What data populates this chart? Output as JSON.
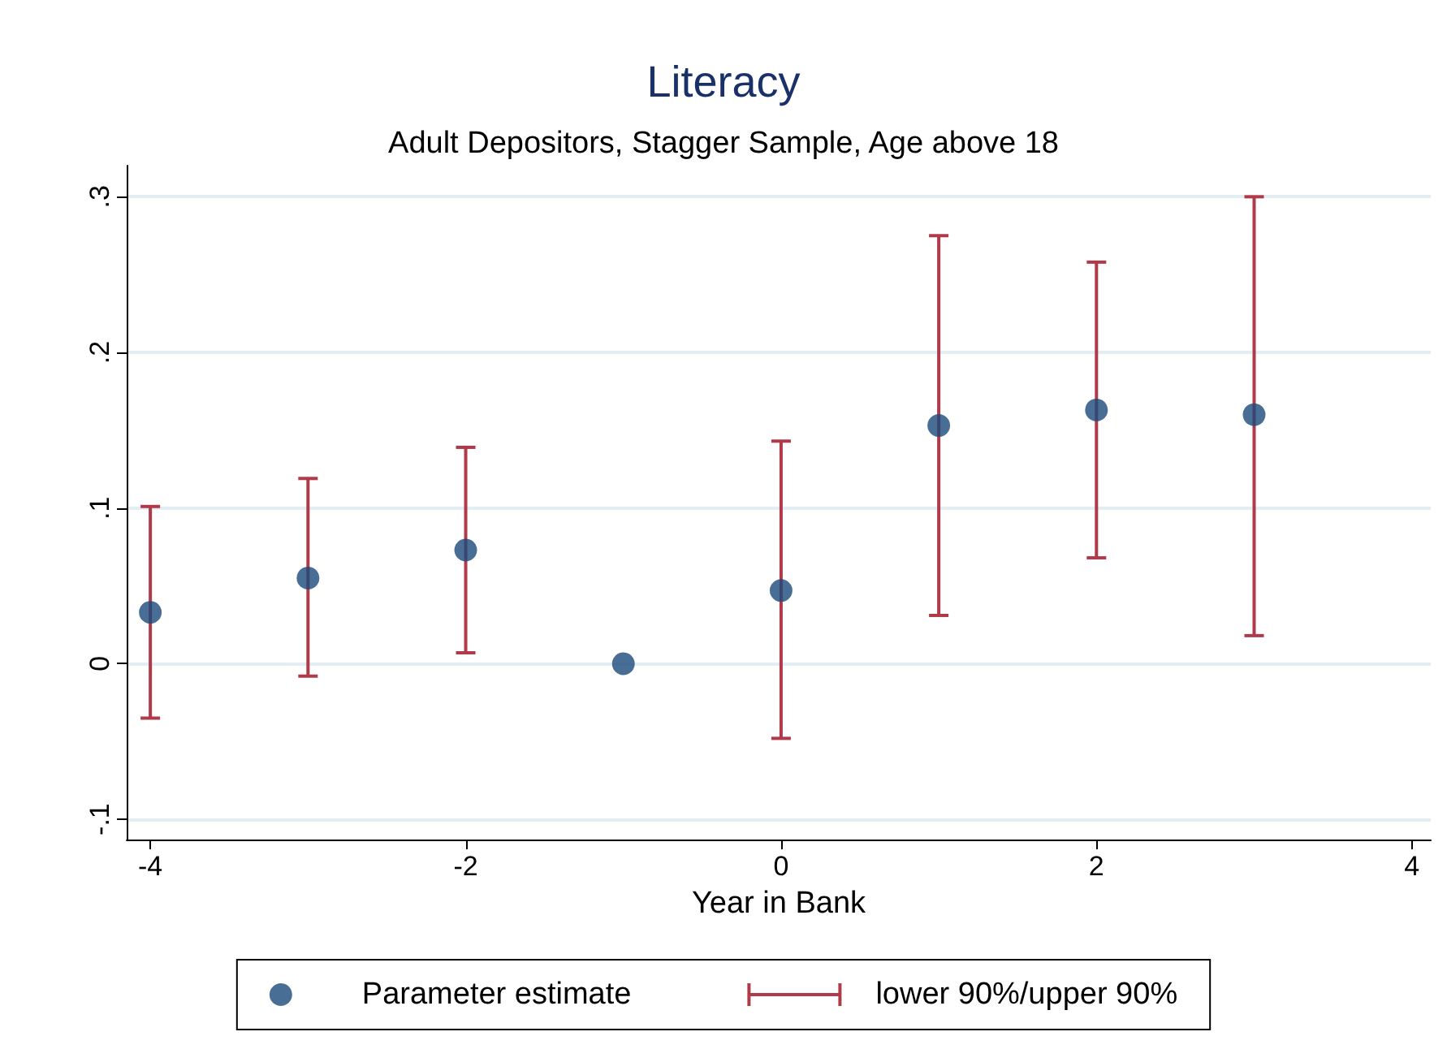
{
  "chart_data": {
    "type": "scatter",
    "title": "Literacy",
    "subtitle": "Adult Depositors, Stagger Sample, Age above 18",
    "xlabel": "Year in Bank",
    "x": [
      -4,
      -3,
      -2,
      -1,
      0,
      1,
      2,
      3
    ],
    "series": [
      {
        "name": "Parameter estimate",
        "color": "#1a4a7a",
        "marker": "circle",
        "values": [
          0.033,
          0.055,
          0.073,
          0,
          0.047,
          0.153,
          0.163,
          0.16
        ],
        "errors": [
          [
            -0.035,
            0.101
          ],
          [
            -0.008,
            0.119
          ],
          [
            0.007,
            0.139
          ],
          null,
          [
            -0.048,
            0.143
          ],
          [
            0.031,
            0.275
          ],
          [
            0.068,
            0.258
          ],
          [
            0.018,
            0.3
          ]
        ]
      },
      {
        "name": "lower 90%/upper 90%",
        "color": "#b03a4a",
        "values": [
          null,
          null,
          null,
          null,
          null,
          null,
          null,
          null
        ]
      }
    ],
    "xlim": [
      -4.15,
      4.12
    ],
    "xticks": [
      -4,
      -2,
      0,
      2,
      4
    ],
    "ylim": [
      -0.113,
      0.32
    ],
    "yticks": [
      {
        "value": -0.1,
        "label": "-.1"
      },
      {
        "value": 0,
        "label": "0"
      },
      {
        "value": 0.1,
        "label": ".1"
      },
      {
        "value": 0.2,
        "label": ".2"
      },
      {
        "value": 0.3,
        "label": ".3"
      }
    ],
    "grid": "y",
    "legend": "bottom"
  }
}
